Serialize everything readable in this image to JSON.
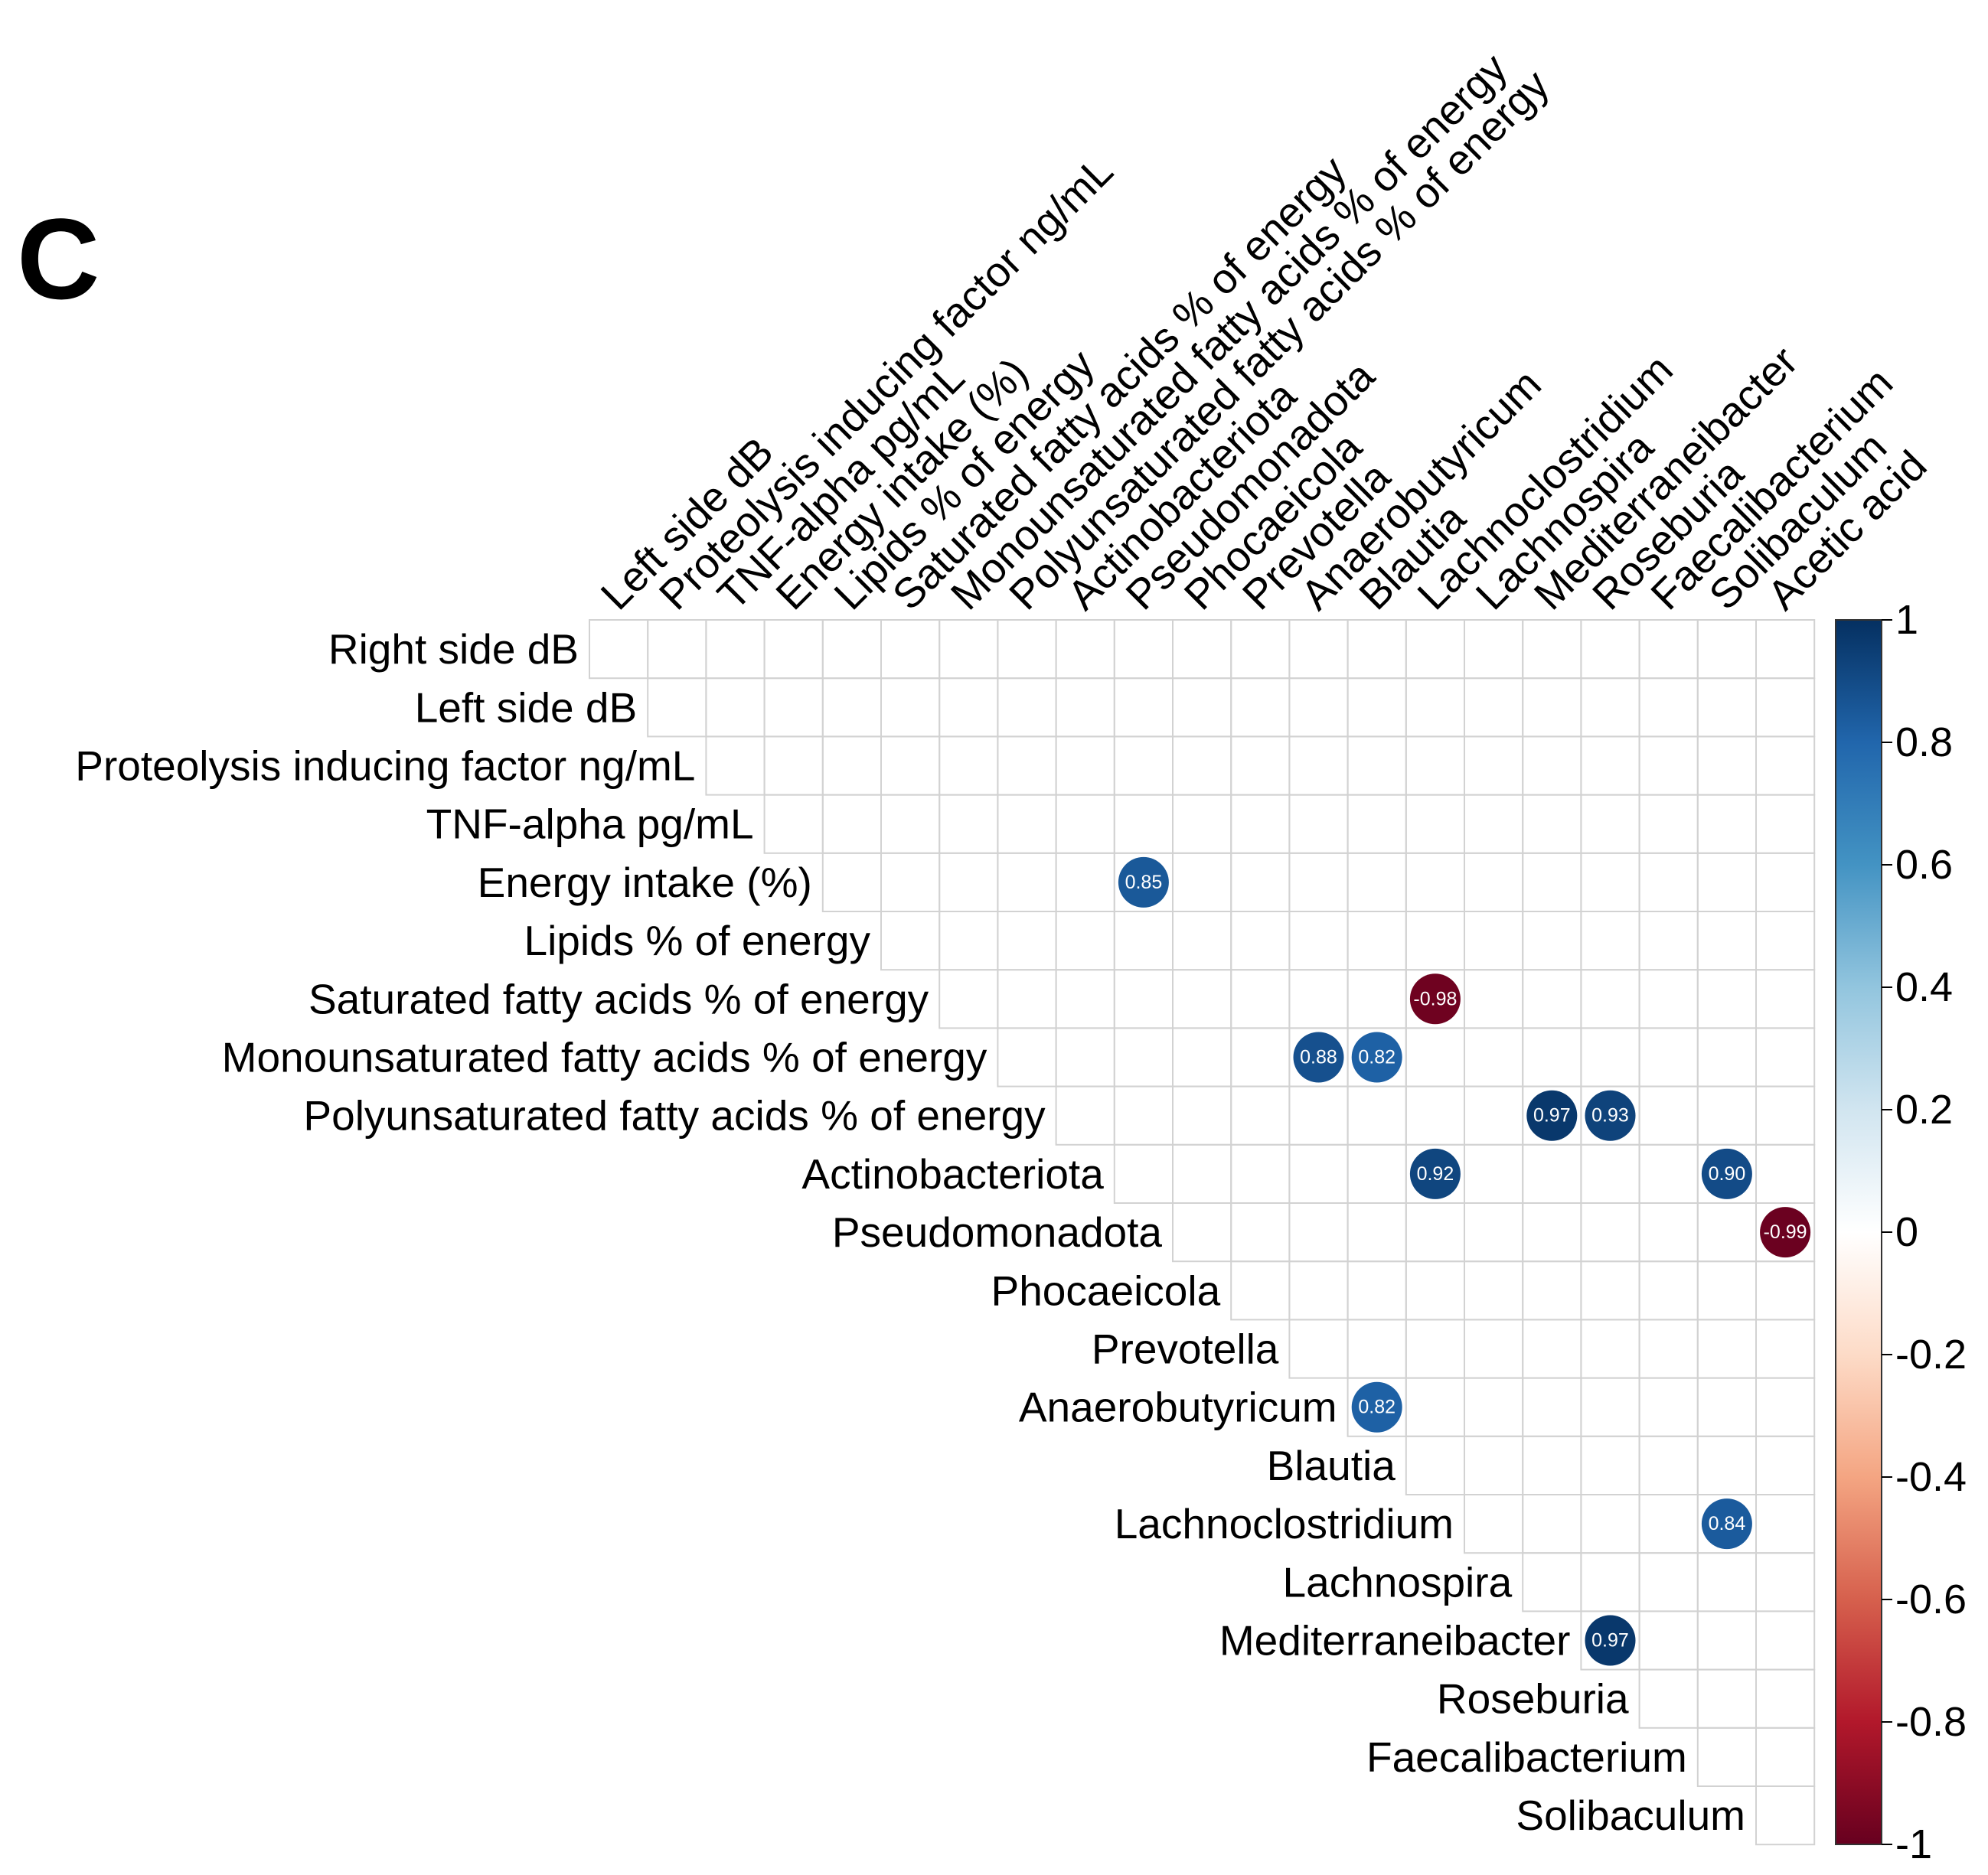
{
  "panel_label": "C",
  "chart_data": {
    "type": "heatmap",
    "style": "upper-triangle correlogram with circles",
    "rows": [
      "Right side dB",
      "Left side dB",
      "Proteolysis inducing factor ng/mL",
      "TNF-alpha pg/mL",
      "Energy intake (%)",
      "Lipids % of energy",
      "Saturated fatty acids % of energy",
      "Monounsaturated fatty acids % of energy",
      "Polyunsaturated fatty acids % of energy",
      "Actinobacteriota",
      "Pseudomonadota",
      "Phocaeicola",
      "Prevotella",
      "Anaerobutyricum",
      "Blautia",
      "Lachnoclostridium",
      "Lachnospira",
      "Mediterraneibacter",
      "Roseburia",
      "Faecalibacterium",
      "Solibaculum"
    ],
    "columns": [
      "Left side dB",
      "Proteolysis inducing factor ng/mL",
      "TNF-alpha pg/mL",
      "Energy intake (%)",
      "Lipids % of energy",
      "Saturated fatty acids % of energy",
      "Monounsaturated fatty acids % of energy",
      "Polyunsaturated fatty acids % of energy",
      "Actinobacteriota",
      "Pseudomonadota",
      "Phocaeicola",
      "Prevotella",
      "Anaerobutyricum",
      "Blautia",
      "Lachnoclostridium",
      "Lachnospira",
      "Mediterraneibacter",
      "Roseburia",
      "Faecalibacterium",
      "Solibaculum",
      "Acetic acid"
    ],
    "cells": [
      {
        "row": "Energy intake (%)",
        "col": "Pseudomonadota",
        "value": 0.85,
        "label": "0.85"
      },
      {
        "row": "Saturated fatty acids % of energy",
        "col": "Lachnoclostridium",
        "value": -0.98,
        "label": "-0.98"
      },
      {
        "row": "Monounsaturated fatty acids % of energy",
        "col": "Anaerobutyricum",
        "value": 0.88,
        "label": "0.88"
      },
      {
        "row": "Monounsaturated fatty acids % of energy",
        "col": "Blautia",
        "value": 0.82,
        "label": "0.82"
      },
      {
        "row": "Polyunsaturated fatty acids % of energy",
        "col": "Mediterraneibacter",
        "value": 0.97,
        "label": "0.97"
      },
      {
        "row": "Polyunsaturated fatty acids % of energy",
        "col": "Roseburia",
        "value": 0.93,
        "label": "0.93"
      },
      {
        "row": "Actinobacteriota",
        "col": "Lachnoclostridium",
        "value": 0.92,
        "label": "0.92"
      },
      {
        "row": "Actinobacteriota",
        "col": "Solibaculum",
        "value": 0.9,
        "label": "0.90"
      },
      {
        "row": "Pseudomonadota",
        "col": "Acetic acid",
        "value": -0.99,
        "label": "-0.99"
      },
      {
        "row": "Anaerobutyricum",
        "col": "Blautia",
        "value": 0.82,
        "label": "0.82"
      },
      {
        "row": "Lachnoclostridium",
        "col": "Solibaculum",
        "value": 0.84,
        "label": "0.84"
      },
      {
        "row": "Mediterraneibacter",
        "col": "Roseburia",
        "value": 0.97,
        "label": "0.97"
      }
    ],
    "color_scale": {
      "range": [
        -1,
        1
      ],
      "stops": [
        "#67001F",
        "#B2182B",
        "#D6604D",
        "#F4A582",
        "#FDDBC7",
        "#FFFFFF",
        "#D1E5F0",
        "#92C5DE",
        "#4393C3",
        "#2166AC",
        "#053061"
      ],
      "ticks": [
        1,
        0.8,
        0.6,
        0.4,
        0.2,
        0,
        -0.2,
        -0.4,
        -0.6,
        -0.8,
        -1
      ],
      "tick_labels": [
        "1",
        "0.8",
        "0.6",
        "0.4",
        "0.2",
        "0",
        "-0.2",
        "-0.4",
        "-0.6",
        "-0.8",
        "-1"
      ],
      "legend_placement": "right"
    },
    "grid": true
  }
}
